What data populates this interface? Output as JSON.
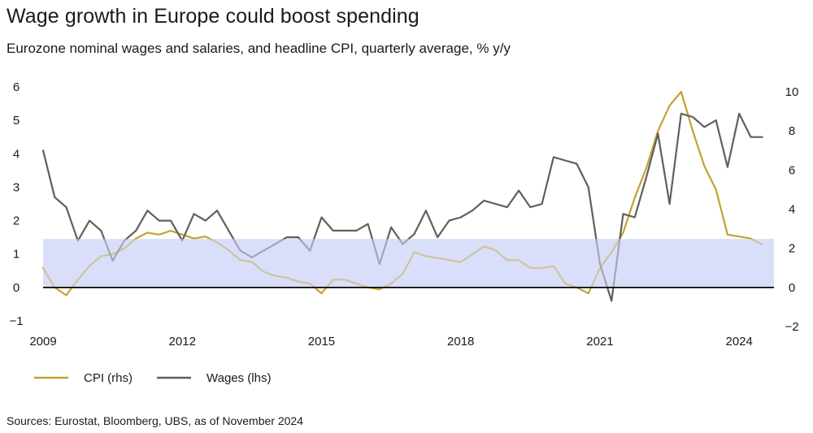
{
  "title": "Wage growth in Europe could boost spending",
  "subtitle": "Eurozone nominal wages and salaries, and headline CPI, quarterly average, % y/y",
  "source": "Sources: Eurostat, Bloomberg, UBS, as of November 2024",
  "colors": {
    "cpi": "#C4A22E",
    "wages": "#5F5F5F",
    "band": "#D9DFFA",
    "zero_line": "#000000"
  },
  "chart_data": {
    "type": "line",
    "title": "Wage growth in Europe could boost spending",
    "subtitle": "Eurozone nominal wages and salaries, and headline CPI, quarterly average, % y/y",
    "xlabel": "",
    "ylabel_left": "",
    "ylabel_right": "",
    "x_ticks": [
      "2009",
      "2012",
      "2015",
      "2018",
      "2021",
      "2024"
    ],
    "x_start": 2009.0,
    "x_end": 2024.75,
    "ylim_left": [
      -1,
      6
    ],
    "yticks_left": [
      "6",
      "5",
      "4",
      "3",
      "2",
      "1",
      "0",
      "−1"
    ],
    "ylim_right": [
      -2,
      10
    ],
    "yticks_right": [
      "10",
      "8",
      "6",
      "4",
      "2",
      "0",
      "−2"
    ],
    "shaded_band_lhs": [
      0,
      1.45
    ],
    "zero_line_lhs": 0,
    "grid": false,
    "legend_position": "bottom-left",
    "series": [
      {
        "name": "CPI (rhs)",
        "axis": "right",
        "x": [
          2009.0,
          2009.25,
          2009.5,
          2009.75,
          2010.0,
          2010.25,
          2010.5,
          2010.75,
          2011.0,
          2011.25,
          2011.5,
          2011.75,
          2012.0,
          2012.25,
          2012.5,
          2012.75,
          2013.0,
          2013.25,
          2013.5,
          2013.75,
          2014.0,
          2014.25,
          2014.5,
          2014.75,
          2015.0,
          2015.25,
          2015.5,
          2015.75,
          2016.0,
          2016.25,
          2016.5,
          2016.75,
          2017.0,
          2017.25,
          2017.5,
          2017.75,
          2018.0,
          2018.25,
          2018.5,
          2018.75,
          2019.0,
          2019.25,
          2019.5,
          2019.75,
          2020.0,
          2020.25,
          2020.5,
          2020.75,
          2021.0,
          2021.25,
          2021.5,
          2021.75,
          2022.0,
          2022.25,
          2022.5,
          2022.75,
          2023.0,
          2023.25,
          2023.5,
          2023.75,
          2024.0,
          2024.25,
          2024.5
        ],
        "values": [
          1.0,
          0.0,
          -0.4,
          0.4,
          1.1,
          1.6,
          1.7,
          2.0,
          2.5,
          2.8,
          2.7,
          2.9,
          2.7,
          2.5,
          2.6,
          2.3,
          1.9,
          1.4,
          1.3,
          0.8,
          0.6,
          0.5,
          0.3,
          0.2,
          -0.3,
          0.4,
          0.4,
          0.2,
          0.0,
          -0.1,
          0.2,
          0.7,
          1.8,
          1.6,
          1.5,
          1.4,
          1.3,
          1.7,
          2.1,
          1.9,
          1.4,
          1.4,
          1.0,
          1.0,
          1.1,
          0.2,
          0.0,
          -0.3,
          1.0,
          1.8,
          2.8,
          4.6,
          6.1,
          8.0,
          9.3,
          10.0,
          8.0,
          6.2,
          5.0,
          2.7,
          2.6,
          2.5,
          2.2
        ]
      },
      {
        "name": "Wages (lhs)",
        "axis": "left",
        "x": [
          2009.0,
          2009.25,
          2009.5,
          2009.75,
          2010.0,
          2010.25,
          2010.5,
          2010.75,
          2011.0,
          2011.25,
          2011.5,
          2011.75,
          2012.0,
          2012.25,
          2012.5,
          2012.75,
          2013.0,
          2013.25,
          2013.5,
          2013.75,
          2014.0,
          2014.25,
          2014.5,
          2014.75,
          2015.0,
          2015.25,
          2015.5,
          2015.75,
          2016.0,
          2016.25,
          2016.5,
          2016.75,
          2017.0,
          2017.25,
          2017.5,
          2017.75,
          2018.0,
          2018.25,
          2018.5,
          2018.75,
          2019.0,
          2019.25,
          2019.5,
          2019.75,
          2020.0,
          2020.25,
          2020.5,
          2020.75,
          2021.0,
          2021.25,
          2021.5,
          2021.75,
          2022.0,
          2022.25,
          2022.5,
          2022.75,
          2023.0,
          2023.25,
          2023.5,
          2023.75,
          2024.0,
          2024.25,
          2024.5
        ],
        "values": [
          4.1,
          2.7,
          2.4,
          1.4,
          2.0,
          1.7,
          0.8,
          1.4,
          1.7,
          2.3,
          2.0,
          2.0,
          1.4,
          2.2,
          2.0,
          2.3,
          1.7,
          1.1,
          0.9,
          1.1,
          1.3,
          1.5,
          1.5,
          1.1,
          2.1,
          1.7,
          1.7,
          1.7,
          1.9,
          0.7,
          1.8,
          1.3,
          1.6,
          2.3,
          1.5,
          2.0,
          2.1,
          2.3,
          2.6,
          2.5,
          2.4,
          2.9,
          2.4,
          2.5,
          3.9,
          3.8,
          3.7,
          3.0,
          0.7,
          -0.4,
          2.2,
          2.1,
          3.3,
          4.6,
          2.5,
          5.2,
          5.1,
          4.8,
          5.0,
          3.6,
          5.2,
          4.5,
          4.5
        ]
      }
    ]
  }
}
